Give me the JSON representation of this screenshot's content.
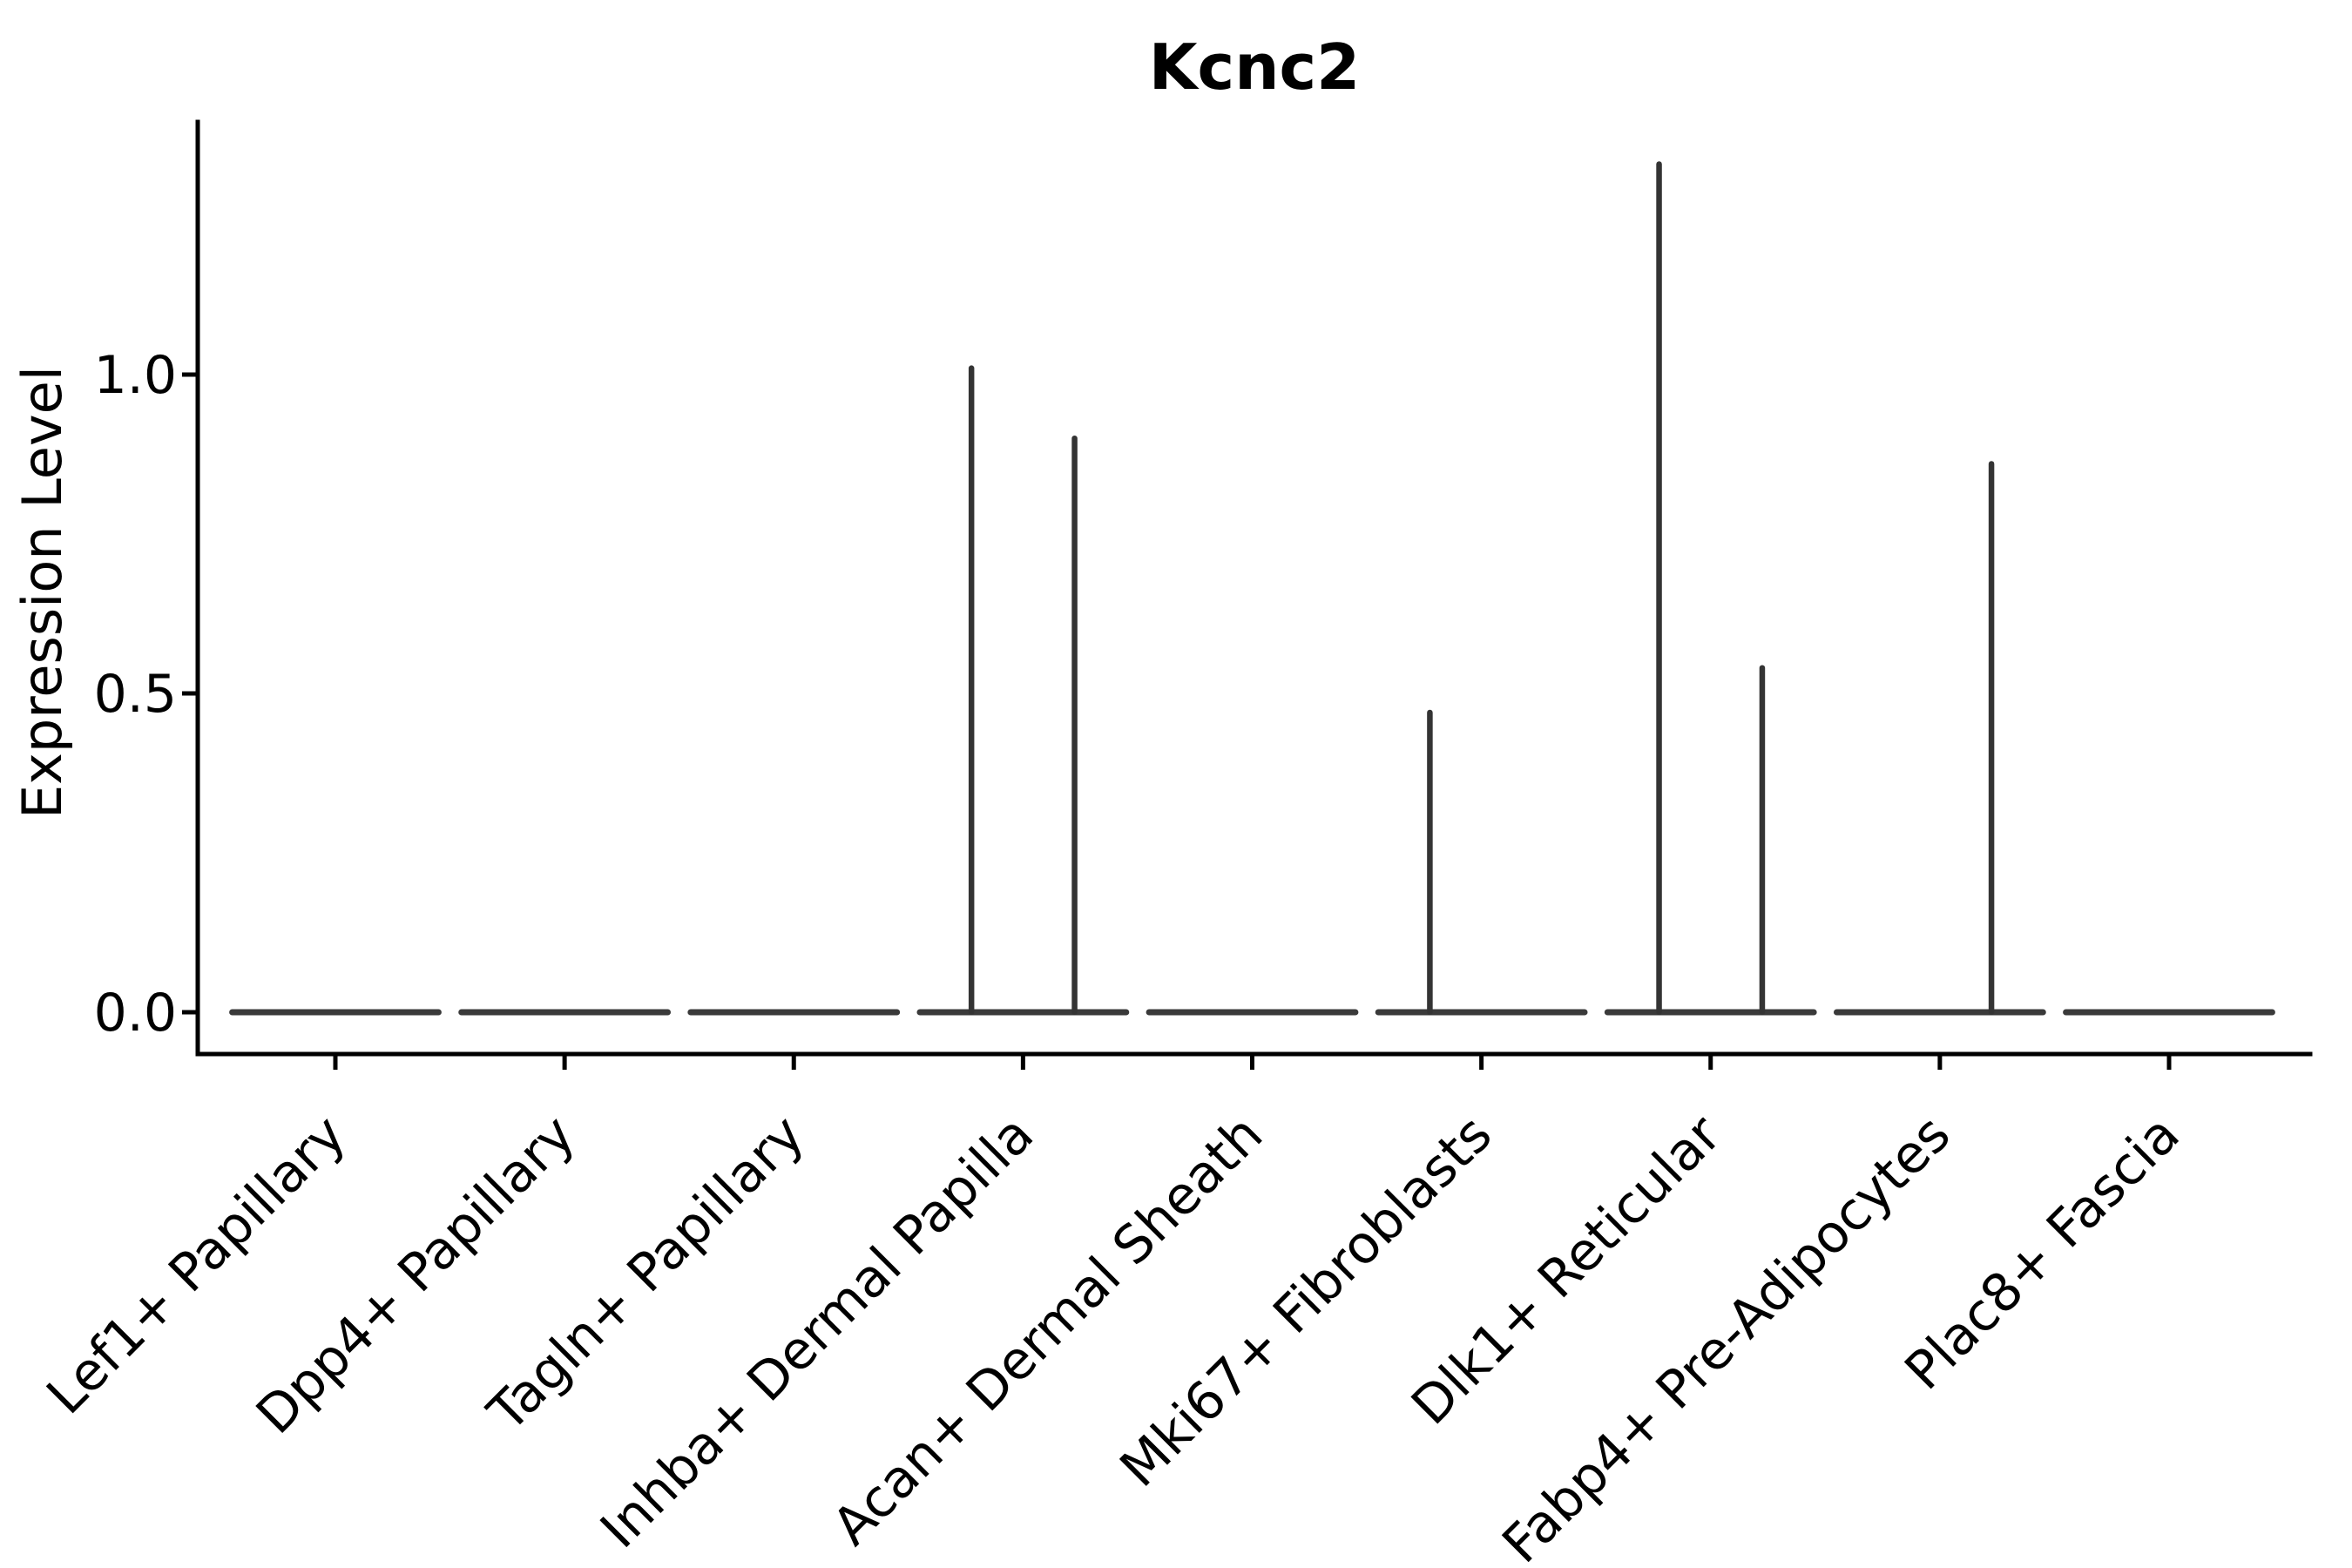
{
  "chart_data": {
    "type": "violin",
    "title": "Kcnc2",
    "ylabel": "Expression Level",
    "xlabel": "",
    "grid": false,
    "legend": null,
    "background_color": "#ffffff",
    "violin_stroke_color": "#3a3a3a",
    "axis_color": "#000000",
    "ylim": [
      -0.07,
      1.4
    ],
    "yticks": [
      {
        "value": 0.0,
        "label": "0.0"
      },
      {
        "value": 0.5,
        "label": "0.5"
      },
      {
        "value": 1.0,
        "label": "1.0"
      }
    ],
    "categories": [
      "Lef1+ Papillary",
      "Dpp4+ Papillary",
      "Tagln+ Papillary",
      "Inhba+ Dermal Papilla",
      "Acan+ Dermal Sheath",
      "Mki67+ Fibroblasts",
      "Dlk1+ Reticular",
      "Fabp4+ Pre-Adipocytes",
      "Plac8+ Fascia"
    ],
    "violin_width": 0.9,
    "series": [
      {
        "category": "Lef1+ Papillary",
        "baseline_value": 0.0,
        "spikes": []
      },
      {
        "category": "Dpp4+ Papillary",
        "baseline_value": 0.0,
        "spikes": []
      },
      {
        "category": "Tagln+ Papillary",
        "baseline_value": 0.0,
        "spikes": []
      },
      {
        "category": "Inhba+ Dermal Papilla",
        "baseline_value": 0.0,
        "spikes": [
          {
            "offset": -0.225,
            "value": 1.01
          },
          {
            "offset": 0.225,
            "value": 0.9
          }
        ]
      },
      {
        "category": "Acan+ Dermal Sheath",
        "baseline_value": 0.0,
        "spikes": []
      },
      {
        "category": "Mki67+ Fibroblasts",
        "baseline_value": 0.0,
        "spikes": [
          {
            "offset": -0.225,
            "value": 0.47
          }
        ]
      },
      {
        "category": "Dlk1+ Reticular",
        "baseline_value": 0.0,
        "spikes": [
          {
            "offset": -0.225,
            "value": 1.33
          },
          {
            "offset": 0.225,
            "value": 0.54
          }
        ]
      },
      {
        "category": "Fabp4+ Pre-Adipocytes",
        "baseline_value": 0.0,
        "spikes": [
          {
            "offset": 0.225,
            "value": 0.86
          }
        ]
      },
      {
        "category": "Plac8+ Fascia",
        "baseline_value": 0.0,
        "spikes": []
      }
    ]
  }
}
